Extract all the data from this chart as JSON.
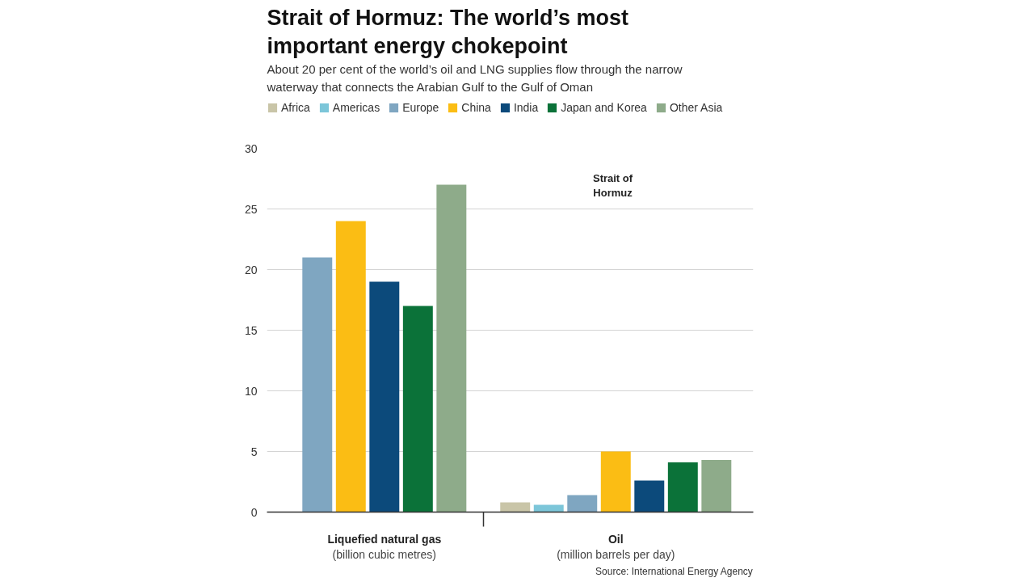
{
  "chart_data": {
    "type": "bar",
    "title": "Strait of Hormuz: The world’s most important energy chokepoint",
    "subtitle": "About 20 per cent of the world’s oil and LNG supplies flow through the narrow waterway that connects the Arabian Gulf to the Gulf of Oman",
    "categories": [
      "Liquefied natural gas (billion cubic metres)",
      "Oil (million barrels per day)"
    ],
    "series": [
      {
        "name": "Africa",
        "color": "#c9c5a8",
        "values": [
          null,
          0.8
        ]
      },
      {
        "name": "Americas",
        "color": "#7cc6d9",
        "values": [
          null,
          0.6
        ]
      },
      {
        "name": "Europe",
        "color": "#7fa6c1",
        "values": [
          21,
          1.4
        ]
      },
      {
        "name": "China",
        "color": "#fbbd14",
        "values": [
          24,
          5.0
        ]
      },
      {
        "name": "India",
        "color": "#0c4a7b",
        "values": [
          19,
          2.6
        ]
      },
      {
        "name": "Japan and Korea",
        "color": "#0b7239",
        "values": [
          17,
          4.1
        ]
      },
      {
        "name": "Other Asia",
        "color": "#8eab8a",
        "values": [
          27,
          4.3
        ]
      }
    ],
    "ylim": [
      0,
      30
    ],
    "yticks": [
      0,
      5,
      10,
      15,
      20,
      25,
      30
    ],
    "grid": "y",
    "legend": "top",
    "annotations": [
      "Strait of Hormuz",
      "Source: International Energy Agency"
    ]
  }
}
